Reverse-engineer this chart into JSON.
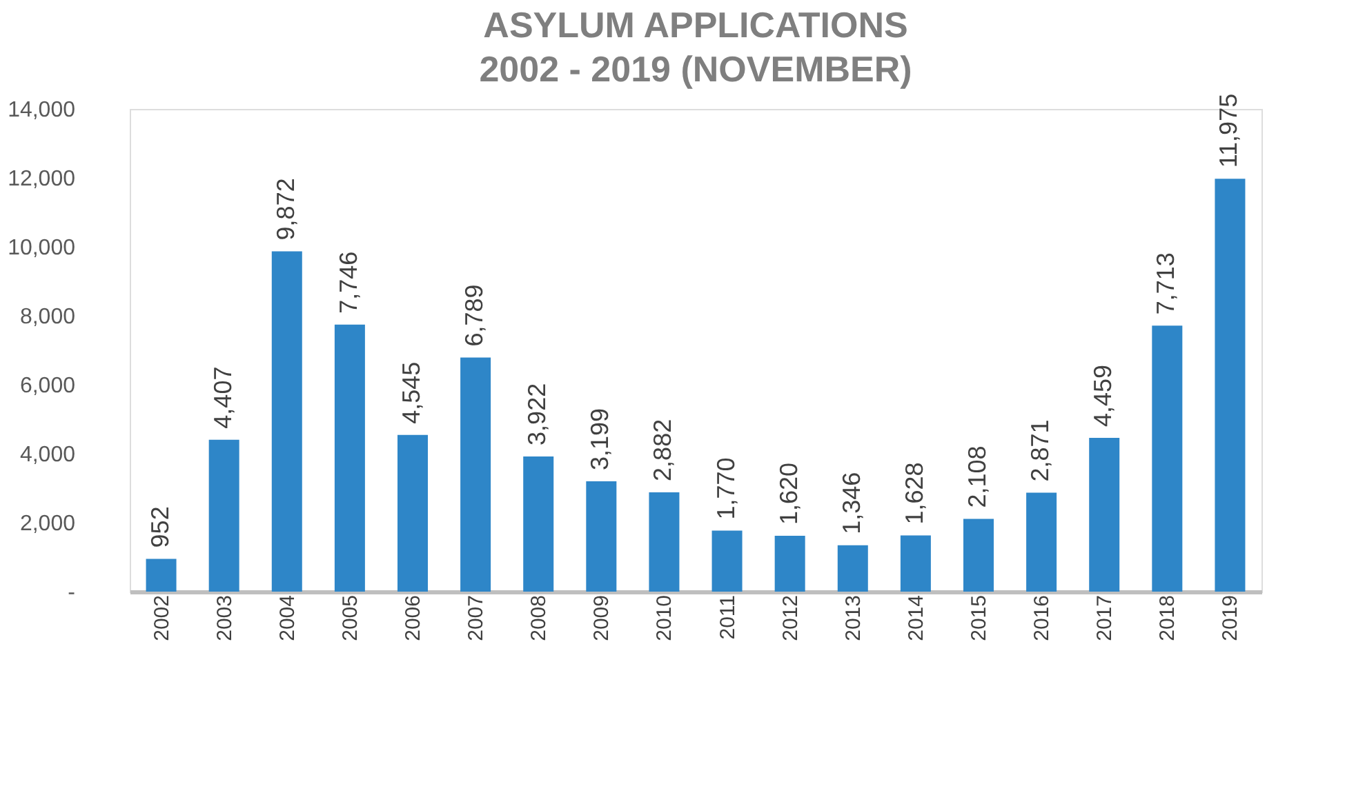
{
  "chart_data": {
    "type": "bar",
    "title": "ASYLUM APPLICATIONS\n2002 - 2019 (NOVEMBER)",
    "categories": [
      "2002",
      "2003",
      "2004",
      "2005",
      "2006",
      "2007",
      "2008",
      "2009",
      "2010",
      "2011",
      "2012",
      "2013",
      "2014",
      "2015",
      "2016",
      "2017",
      "2018",
      "2019"
    ],
    "values": [
      952,
      4407,
      9872,
      7746,
      4545,
      6789,
      3922,
      3199,
      2882,
      1770,
      1620,
      1346,
      1628,
      2108,
      2871,
      4459,
      7713,
      11975
    ],
    "color": "#2e86c8",
    "ylim": [
      0,
      14000
    ],
    "yticks": [
      {
        "value": 0,
        "label": "-"
      },
      {
        "value": 2000,
        "label": "2,000"
      },
      {
        "value": 4000,
        "label": "4,000"
      },
      {
        "value": 6000,
        "label": "6,000"
      },
      {
        "value": 8000,
        "label": "8,000"
      },
      {
        "value": 10000,
        "label": "10,000"
      },
      {
        "value": 12000,
        "label": "12,000"
      },
      {
        "value": 14000,
        "label": "14,000"
      }
    ],
    "value_labels": [
      "952",
      "4,407",
      "9,872",
      "7,746",
      "4,545",
      "6,789",
      "3,922",
      "3,199",
      "2,882",
      "1,770",
      "1,620",
      "1,346",
      "1,628",
      "2,108",
      "2,871",
      "4,459",
      "7,713",
      "11,975"
    ],
    "grid": false
  }
}
